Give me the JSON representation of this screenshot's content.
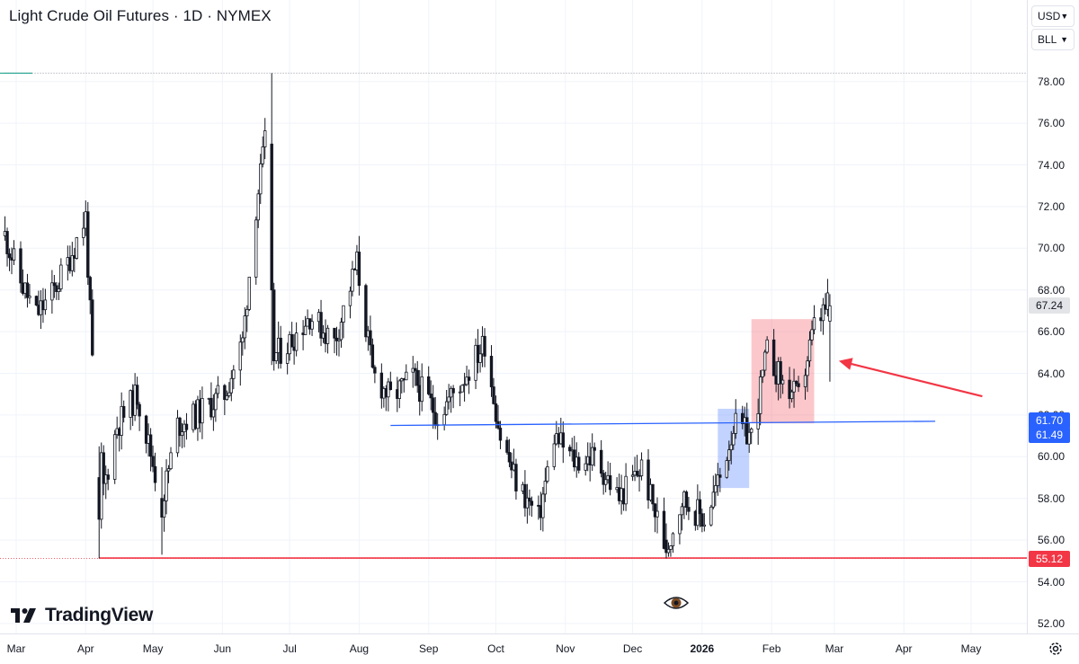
{
  "header": {
    "title": "Light Crude Oil Futures · 1D · NYMEX"
  },
  "toolbar": {
    "currency": "USD",
    "unit": "BLL"
  },
  "logo": {
    "text": "TradingView",
    "icon": "tradingview-logo-icon"
  },
  "icons": {
    "eye": "eye-icon",
    "settings": "gear-icon"
  },
  "price_labels": [
    {
      "value": "67.24",
      "bg": "#e3e4e8",
      "fg": "#131722"
    },
    {
      "value": "61.70",
      "bg": "#2962ff",
      "fg": "#ffffff"
    },
    {
      "value": "61.49",
      "bg": "#2962ff",
      "fg": "#ffffff"
    },
    {
      "value": "55.12",
      "bg": "#f23645",
      "fg": "#ffffff"
    }
  ],
  "chart_data": {
    "type": "candlestick",
    "title": "Light Crude Oil Futures · 1D · NYMEX",
    "y_ticks": [
      "78.00",
      "76.00",
      "74.00",
      "72.00",
      "70.00",
      "68.00",
      "66.00",
      "64.00",
      "62.00",
      "60.00",
      "58.00",
      "56.00",
      "54.00",
      "52.00"
    ],
    "ylim": [
      51.5,
      78.5
    ],
    "x_ticks": [
      {
        "label": "Mar",
        "date": "2025-03-01",
        "bold": false
      },
      {
        "label": "Apr",
        "date": "2025-04-01",
        "bold": false
      },
      {
        "label": "May",
        "date": "2025-05-01",
        "bold": false
      },
      {
        "label": "Jun",
        "date": "2025-06-01",
        "bold": false
      },
      {
        "label": "Jul",
        "date": "2025-07-01",
        "bold": false
      },
      {
        "label": "Aug",
        "date": "2025-08-01",
        "bold": false
      },
      {
        "label": "Sep",
        "date": "2025-09-01",
        "bold": false
      },
      {
        "label": "Oct",
        "date": "2025-10-01",
        "bold": false
      },
      {
        "label": "Nov",
        "date": "2025-11-01",
        "bold": false
      },
      {
        "label": "Dec",
        "date": "2025-12-01",
        "bold": false
      },
      {
        "label": "2026",
        "date": "2026-01-01",
        "bold": true
      },
      {
        "label": "Feb",
        "date": "2026-02-01",
        "bold": false
      },
      {
        "label": "Mar",
        "date": "2026-03-01",
        "bold": false
      },
      {
        "label": "Apr",
        "date": "2026-04-01",
        "bold": false
      },
      {
        "label": "May",
        "date": "2026-05-01",
        "bold": false
      }
    ],
    "price_path": [
      [
        "2025-02-24",
        70.6
      ],
      [
        "2025-03-03",
        68.4
      ],
      [
        "2025-03-10",
        66.8
      ],
      [
        "2025-03-17",
        67.8
      ],
      [
        "2025-03-24",
        69.3
      ],
      [
        "2025-04-01",
        71.5
      ],
      [
        "2025-04-04",
        64.5
      ],
      [
        "2025-04-09",
        58.5
      ],
      [
        "2025-04-15",
        61.5
      ],
      [
        "2025-04-24",
        63.0
      ],
      [
        "2025-05-05",
        57.8
      ],
      [
        "2025-05-12",
        61.5
      ],
      [
        "2025-05-20",
        62.0
      ],
      [
        "2025-06-02",
        63.0
      ],
      [
        "2025-06-10",
        65.5
      ],
      [
        "2025-06-16",
        72.0
      ],
      [
        "2025-06-20",
        75.0
      ],
      [
        "2025-06-24",
        64.8
      ],
      [
        "2025-07-01",
        65.5
      ],
      [
        "2025-07-10",
        66.8
      ],
      [
        "2025-07-21",
        65.5
      ],
      [
        "2025-07-31",
        69.3
      ],
      [
        "2025-08-07",
        64.0
      ],
      [
        "2025-08-15",
        62.8
      ],
      [
        "2025-08-25",
        63.8
      ],
      [
        "2025-09-05",
        62.0
      ],
      [
        "2025-09-15",
        63.5
      ],
      [
        "2025-09-26",
        65.5
      ],
      [
        "2025-10-03",
        61.0
      ],
      [
        "2025-10-10",
        58.8
      ],
      [
        "2025-10-20",
        57.0
      ],
      [
        "2025-10-27",
        61.0
      ],
      [
        "2025-11-05",
        59.8
      ],
      [
        "2025-11-14",
        60.0
      ],
      [
        "2025-11-25",
        58.0
      ],
      [
        "2025-12-05",
        59.5
      ],
      [
        "2025-12-16",
        55.5
      ],
      [
        "2025-12-23",
        58.0
      ],
      [
        "2026-01-02",
        57.0
      ],
      [
        "2026-01-09",
        59.0
      ],
      [
        "2026-01-15",
        61.5
      ],
      [
        "2026-01-23",
        61.0
      ],
      [
        "2026-01-30",
        65.0
      ],
      [
        "2026-02-06",
        63.5
      ],
      [
        "2026-02-13",
        62.8
      ],
      [
        "2026-02-20",
        66.2
      ],
      [
        "2026-02-26",
        67.24
      ]
    ],
    "highlighted_candles": [
      {
        "date": "2025-06-23",
        "open": 75.0,
        "high": 78.4,
        "low": 64.4,
        "close": 68.0
      },
      {
        "date": "2025-04-07",
        "open": 59.0,
        "high": 60.5,
        "low": 55.12,
        "close": 57.0
      },
      {
        "date": "2025-05-05",
        "open": 58.0,
        "high": 59.5,
        "low": 55.3,
        "close": 57.1
      },
      {
        "date": "2025-12-16",
        "open": 56.0,
        "high": 56.8,
        "low": 55.12,
        "close": 55.4
      },
      {
        "date": "2026-02-27",
        "open": 66.5,
        "high": 67.8,
        "low": 63.6,
        "close": 67.24
      }
    ],
    "horizontal_lines": [
      {
        "name": "low-support",
        "value": 55.12,
        "color": "#f23645",
        "from": "2025-04-07",
        "to_edge": true
      },
      {
        "name": "top-dotted",
        "value": 78.4,
        "color": "#9598a1",
        "from": "2025-02-24",
        "to_edge": true
      }
    ],
    "trend_lines": [
      {
        "color": "#2962ff",
        "from": [
          "2025-08-15",
          61.5
        ],
        "to": [
          "2026-04-15",
          61.7
        ]
      }
    ],
    "boxes": [
      {
        "color": "#2962ff",
        "from": "2026-01-08",
        "to": "2026-01-22",
        "top": 62.3,
        "bottom": 58.5
      },
      {
        "color": "#f23645",
        "from": "2026-01-23",
        "to": "2026-02-20",
        "top": 66.6,
        "bottom": 61.6
      }
    ],
    "arrow": {
      "color": "#f23645",
      "from": [
        "2026-05-06",
        62.9
      ],
      "to": [
        "2026-03-03",
        64.6
      ]
    },
    "up_color": "#ffffff",
    "down_color": "#131722",
    "wick_color": "#131722",
    "grid": true,
    "legend": "none"
  }
}
